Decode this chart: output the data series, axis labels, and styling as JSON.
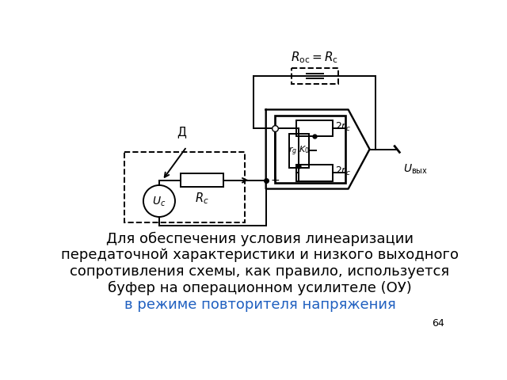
{
  "title_line1": "Для обеспечения условия линеаризации",
  "title_line2": "передаточной характеристики и низкого выходного",
  "title_line3": "сопротивления схемы, как правило, используется",
  "title_line4": "буфер на операционном усилителе (ОУ)",
  "title_line5": "в режиме повторителя напряжения",
  "page_number": "64",
  "bg_color": "#ffffff",
  "text_color": "#000000",
  "blue_color": "#2060c0",
  "font_size_main": 13.0,
  "font_size_blue": 13.0
}
